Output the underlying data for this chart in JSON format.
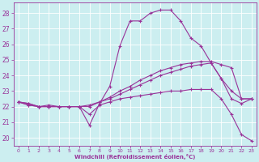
{
  "xlabel": "Windchill (Refroidissement éolien,°C)",
  "bg_color": "#cceef0",
  "line_color": "#993399",
  "grid_color": "#aadddd",
  "xlim": [
    -0.5,
    23.5
  ],
  "ylim": [
    19.5,
    28.7
  ],
  "yticks": [
    20,
    21,
    22,
    23,
    24,
    25,
    26,
    27,
    28
  ],
  "xticks": [
    0,
    1,
    2,
    3,
    4,
    5,
    6,
    7,
    8,
    9,
    10,
    11,
    12,
    13,
    14,
    15,
    16,
    17,
    18,
    19,
    20,
    21,
    22,
    23
  ],
  "line1_x": [
    0,
    1,
    2,
    3,
    4,
    5,
    6,
    7,
    8,
    9,
    10,
    11,
    12,
    13,
    14,
    15,
    16,
    17,
    18,
    19,
    20,
    21,
    22,
    23
  ],
  "line1_y": [
    22.3,
    22.2,
    22.0,
    22.1,
    22.0,
    22.0,
    22.0,
    20.8,
    22.2,
    23.3,
    25.9,
    27.5,
    27.5,
    28.0,
    28.2,
    28.2,
    27.5,
    26.4,
    25.9,
    24.8,
    23.8,
    22.5,
    22.2,
    22.5
  ],
  "line2_x": [
    0,
    1,
    2,
    3,
    4,
    5,
    6,
    7,
    8,
    9,
    10,
    11,
    12,
    13,
    14,
    15,
    16,
    17,
    18,
    19,
    20,
    21,
    22,
    23
  ],
  "line2_y": [
    22.3,
    22.1,
    22.0,
    22.0,
    22.0,
    22.0,
    22.0,
    22.1,
    22.3,
    22.5,
    22.8,
    23.1,
    23.4,
    23.7,
    24.0,
    24.2,
    24.4,
    24.6,
    24.7,
    24.8,
    23.8,
    23.0,
    22.5,
    22.5
  ],
  "line3_x": [
    0,
    1,
    2,
    3,
    4,
    5,
    6,
    7,
    8,
    9,
    10,
    11,
    12,
    13,
    14,
    15,
    16,
    17,
    18,
    19,
    20,
    21,
    22,
    23
  ],
  "line3_y": [
    22.3,
    22.1,
    22.0,
    22.0,
    22.0,
    22.0,
    22.0,
    22.0,
    22.3,
    22.6,
    23.0,
    23.3,
    23.7,
    24.0,
    24.3,
    24.5,
    24.7,
    24.8,
    24.9,
    24.9,
    24.7,
    24.5,
    22.5,
    22.5
  ],
  "line4_x": [
    0,
    1,
    2,
    3,
    4,
    5,
    6,
    7,
    8,
    9,
    10,
    11,
    12,
    13,
    14,
    15,
    16,
    17,
    18,
    19,
    20,
    21,
    22,
    23
  ],
  "line4_y": [
    22.3,
    22.2,
    22.0,
    22.0,
    22.0,
    22.0,
    22.0,
    21.5,
    22.1,
    22.3,
    22.5,
    22.6,
    22.7,
    22.8,
    22.9,
    23.0,
    23.0,
    23.1,
    23.1,
    23.1,
    22.5,
    21.5,
    20.2,
    19.8
  ]
}
